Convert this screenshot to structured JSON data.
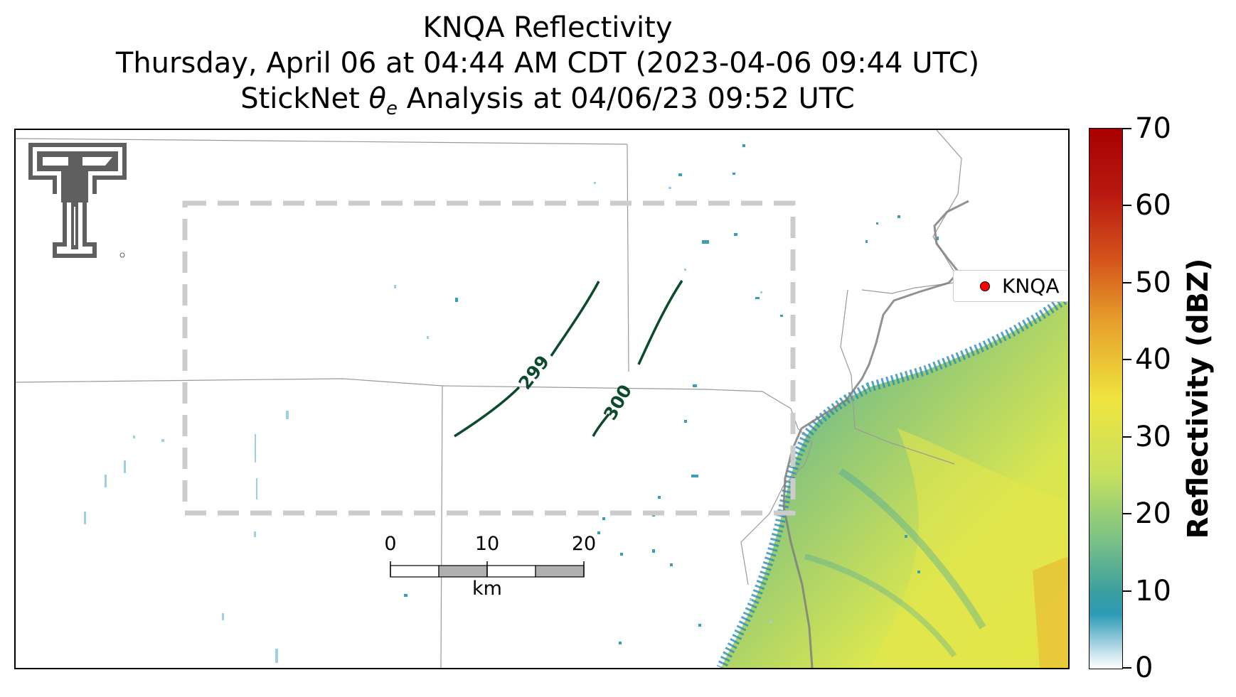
{
  "title": {
    "line1": "KNQA Reflectivity",
    "line2": "Thursday, April 06 at 04:44 AM CDT (2023-04-06 09:44 UTC)",
    "line3_prefix": "StickNet ",
    "line3_symbol": "θ",
    "line3_subscript": "e",
    "line3_suffix": " Analysis at 04/06/23 09:52 UTC"
  },
  "legend": {
    "label": "KNQA",
    "marker_color": "#ff0000"
  },
  "contours": [
    {
      "label": "299"
    },
    {
      "label": "300"
    }
  ],
  "contour_color": "#0b4a2a",
  "scale_bar": {
    "labels": [
      "0",
      "10",
      "20"
    ],
    "unit": "km"
  },
  "colorbar": {
    "title": "Reflectivity (dBZ)",
    "ticks": [
      "0",
      "10",
      "20",
      "30",
      "40",
      "50",
      "60",
      "70"
    ],
    "range": [
      0,
      70
    ]
  },
  "colors": {
    "domain_box": "#cccccc",
    "county_lines": "#9a9a9a",
    "state_line": "#888888",
    "logo": "#5f5f5f"
  },
  "logo": {
    "name": "Texas Tech Double T logo"
  }
}
